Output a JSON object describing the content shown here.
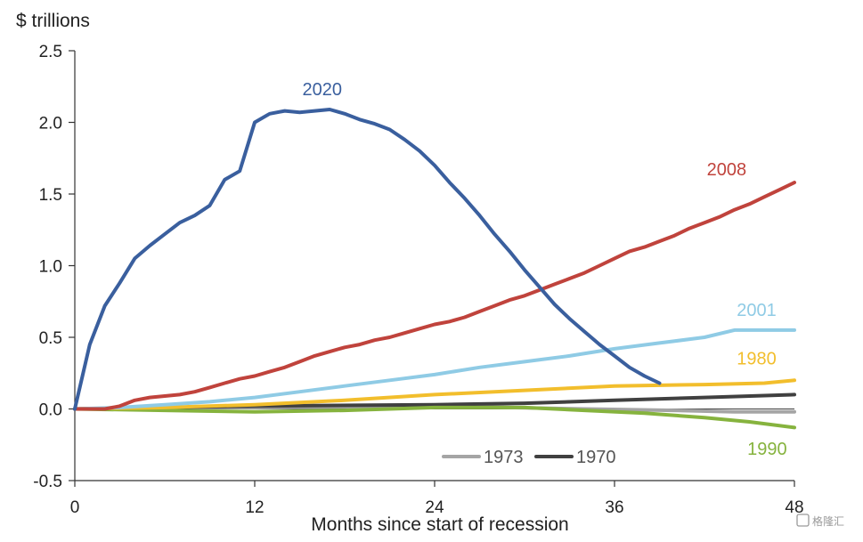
{
  "chart_data": {
    "type": "line",
    "ylabel": "$ trillions",
    "xlabel": "Months since start of recession",
    "xlim": [
      0,
      48
    ],
    "ylim": [
      -0.5,
      2.5
    ],
    "xticks": [
      0,
      12,
      24,
      36,
      48
    ],
    "yticks": [
      -0.5,
      0.0,
      0.5,
      1.0,
      1.5,
      2.0,
      2.5
    ],
    "ytick_labels": [
      "-0.5",
      "0.0",
      "0.5",
      "1.0",
      "1.5",
      "2.0",
      "2.5"
    ],
    "grid": false,
    "series": [
      {
        "name": "2020",
        "color": "#3a5f9e",
        "points": [
          [
            0,
            0.0
          ],
          [
            1,
            0.45
          ],
          [
            2,
            0.72
          ],
          [
            3,
            0.88
          ],
          [
            4,
            1.05
          ],
          [
            5,
            1.14
          ],
          [
            6,
            1.22
          ],
          [
            7,
            1.3
          ],
          [
            8,
            1.35
          ],
          [
            9,
            1.42
          ],
          [
            10,
            1.6
          ],
          [
            11,
            1.66
          ],
          [
            12,
            2.0
          ],
          [
            13,
            2.06
          ],
          [
            14,
            2.08
          ],
          [
            15,
            2.07
          ],
          [
            16,
            2.08
          ],
          [
            17,
            2.09
          ],
          [
            18,
            2.06
          ],
          [
            19,
            2.02
          ],
          [
            20,
            1.99
          ],
          [
            21,
            1.95
          ],
          [
            22,
            1.88
          ],
          [
            23,
            1.8
          ],
          [
            24,
            1.7
          ],
          [
            25,
            1.58
          ],
          [
            26,
            1.47
          ],
          [
            27,
            1.35
          ],
          [
            28,
            1.22
          ],
          [
            29,
            1.1
          ],
          [
            30,
            0.97
          ],
          [
            31,
            0.85
          ],
          [
            32,
            0.73
          ],
          [
            33,
            0.63
          ],
          [
            34,
            0.54
          ],
          [
            35,
            0.45
          ],
          [
            36,
            0.37
          ],
          [
            37,
            0.29
          ],
          [
            38,
            0.23
          ],
          [
            39,
            0.18
          ]
        ]
      },
      {
        "name": "2008",
        "color": "#c0433c",
        "points": [
          [
            0,
            0.0
          ],
          [
            1,
            0.0
          ],
          [
            2,
            0.0
          ],
          [
            3,
            0.02
          ],
          [
            4,
            0.06
          ],
          [
            5,
            0.08
          ],
          [
            6,
            0.09
          ],
          [
            7,
            0.1
          ],
          [
            8,
            0.12
          ],
          [
            9,
            0.15
          ],
          [
            10,
            0.18
          ],
          [
            11,
            0.21
          ],
          [
            12,
            0.23
          ],
          [
            13,
            0.26
          ],
          [
            14,
            0.29
          ],
          [
            15,
            0.33
          ],
          [
            16,
            0.37
          ],
          [
            17,
            0.4
          ],
          [
            18,
            0.43
          ],
          [
            19,
            0.45
          ],
          [
            20,
            0.48
          ],
          [
            21,
            0.5
          ],
          [
            22,
            0.53
          ],
          [
            23,
            0.56
          ],
          [
            24,
            0.59
          ],
          [
            25,
            0.61
          ],
          [
            26,
            0.64
          ],
          [
            27,
            0.68
          ],
          [
            28,
            0.72
          ],
          [
            29,
            0.76
          ],
          [
            30,
            0.79
          ],
          [
            31,
            0.83
          ],
          [
            32,
            0.87
          ],
          [
            33,
            0.91
          ],
          [
            34,
            0.95
          ],
          [
            35,
            1.0
          ],
          [
            36,
            1.05
          ],
          [
            37,
            1.1
          ],
          [
            38,
            1.13
          ],
          [
            39,
            1.17
          ],
          [
            40,
            1.21
          ],
          [
            41,
            1.26
          ],
          [
            42,
            1.3
          ],
          [
            43,
            1.34
          ],
          [
            44,
            1.39
          ],
          [
            45,
            1.43
          ],
          [
            46,
            1.48
          ],
          [
            47,
            1.53
          ],
          [
            48,
            1.58
          ]
        ]
      },
      {
        "name": "2001",
        "color": "#8fcbe5",
        "points": [
          [
            0,
            0.0
          ],
          [
            3,
            0.01
          ],
          [
            6,
            0.03
          ],
          [
            9,
            0.05
          ],
          [
            12,
            0.08
          ],
          [
            15,
            0.12
          ],
          [
            18,
            0.16
          ],
          [
            21,
            0.2
          ],
          [
            24,
            0.24
          ],
          [
            27,
            0.29
          ],
          [
            30,
            0.33
          ],
          [
            33,
            0.37
          ],
          [
            36,
            0.42
          ],
          [
            39,
            0.46
          ],
          [
            42,
            0.5
          ],
          [
            44,
            0.55
          ],
          [
            48,
            0.55
          ]
        ]
      },
      {
        "name": "1980",
        "color": "#f2be2c",
        "points": [
          [
            0,
            0.0
          ],
          [
            6,
            0.01
          ],
          [
            12,
            0.03
          ],
          [
            18,
            0.06
          ],
          [
            24,
            0.1
          ],
          [
            30,
            0.13
          ],
          [
            36,
            0.16
          ],
          [
            42,
            0.17
          ],
          [
            46,
            0.18
          ],
          [
            48,
            0.2
          ]
        ]
      },
      {
        "name": "1990",
        "color": "#86b33e",
        "points": [
          [
            0,
            0.0
          ],
          [
            6,
            -0.01
          ],
          [
            12,
            -0.02
          ],
          [
            18,
            -0.01
          ],
          [
            24,
            0.01
          ],
          [
            30,
            0.01
          ],
          [
            34,
            -0.01
          ],
          [
            38,
            -0.03
          ],
          [
            42,
            -0.06
          ],
          [
            45,
            -0.09
          ],
          [
            48,
            -0.13
          ]
        ]
      },
      {
        "name": "1973",
        "color": "#a5a5a5",
        "points": [
          [
            0,
            0.0
          ],
          [
            12,
            0.01
          ],
          [
            24,
            0.02
          ],
          [
            34,
            0.0
          ],
          [
            40,
            -0.01
          ],
          [
            44,
            -0.02
          ],
          [
            48,
            -0.02
          ]
        ]
      },
      {
        "name": "1970",
        "color": "#404040",
        "points": [
          [
            0,
            0.0
          ],
          [
            12,
            0.02
          ],
          [
            24,
            0.03
          ],
          [
            30,
            0.04
          ],
          [
            36,
            0.06
          ],
          [
            42,
            0.08
          ],
          [
            48,
            0.1
          ]
        ]
      }
    ],
    "labels": [
      {
        "text": "2020",
        "color": "#3a5f9e",
        "x": 16.5,
        "y": 2.19,
        "anchor": "middle"
      },
      {
        "text": "2008",
        "color": "#c0433c",
        "x": 44.8,
        "y": 1.63,
        "anchor": "end"
      },
      {
        "text": "2001",
        "color": "#8fcbe5",
        "x": 46.8,
        "y": 0.65,
        "anchor": "end"
      },
      {
        "text": "1980",
        "color": "#f2be2c",
        "x": 46.8,
        "y": 0.31,
        "anchor": "end"
      },
      {
        "text": "1990",
        "color": "#86b33e",
        "x": 47.5,
        "y": -0.32,
        "anchor": "end"
      }
    ],
    "legend": {
      "placement": "bottom-center",
      "items": [
        {
          "name": "1973",
          "color": "#a5a5a5"
        },
        {
          "name": "1970",
          "color": "#404040"
        }
      ]
    }
  },
  "watermark": "格隆汇"
}
